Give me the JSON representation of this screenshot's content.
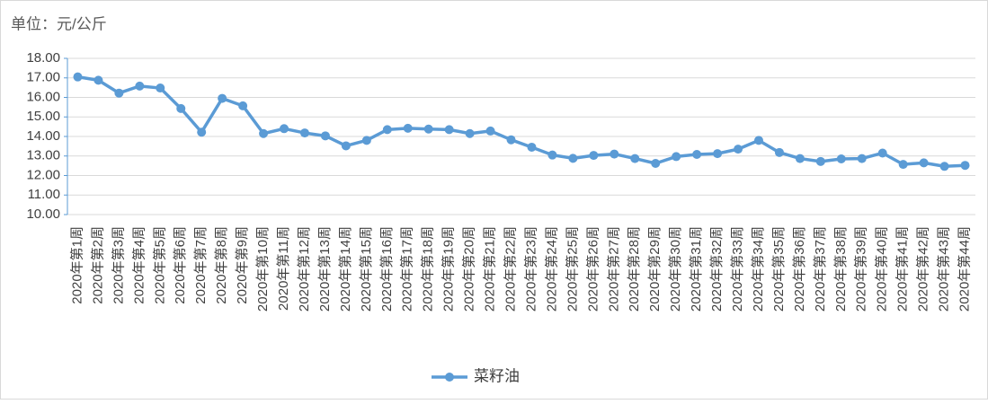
{
  "chart_data": {
    "type": "line",
    "y_label": "单位：元/公斤",
    "categories": [
      "2020年第1周",
      "2020年第2周",
      "2020年第3周",
      "2020年第4周",
      "2020年第5周",
      "2020年第6周",
      "2020年第7周",
      "2020年第8周",
      "2020年第9周",
      "2020年第10周",
      "2020年第11周",
      "2020年第12周",
      "2020年第13周",
      "2020年第14周",
      "2020年第15周",
      "2020年第16周",
      "2020年第17周",
      "2020年第18周",
      "2020年第19周",
      "2020年第20周",
      "2020年第21周",
      "2020年第22周",
      "2020年第23周",
      "2020年第24周",
      "2020年第25周",
      "2020年第26周",
      "2020年第27周",
      "2020年第28周",
      "2020年第29周",
      "2020年第30周",
      "2020年第31周",
      "2020年第32周",
      "2020年第33周",
      "2020年第34周",
      "2020年第35周",
      "2020年第36周",
      "2020年第37周",
      "2020年第38周",
      "2020年第39周",
      "2020年第40周",
      "2020年第41周",
      "2020年第42周",
      "2020年第43周",
      "2020年第44周"
    ],
    "series": [
      {
        "name": "菜籽油",
        "color": "#5b9bd5",
        "values": [
          17.05,
          16.88,
          16.22,
          16.58,
          16.48,
          15.43,
          14.22,
          15.95,
          15.57,
          14.15,
          14.4,
          14.18,
          14.03,
          13.52,
          13.8,
          14.35,
          14.42,
          14.38,
          14.35,
          14.15,
          14.28,
          13.83,
          13.45,
          13.05,
          12.88,
          13.03,
          13.1,
          12.87,
          12.62,
          12.97,
          13.08,
          13.12,
          13.35,
          13.8,
          13.18,
          12.87,
          12.72,
          12.85,
          12.87,
          13.15,
          12.57,
          12.65,
          12.47,
          12.52
        ]
      }
    ],
    "ylim": [
      10,
      18
    ],
    "yticks": [
      {
        "value": 10,
        "label": "10.00"
      },
      {
        "value": 11,
        "label": "11.00"
      },
      {
        "value": 12,
        "label": "12.00"
      },
      {
        "value": 13,
        "label": "13.00"
      },
      {
        "value": 14,
        "label": "14.00"
      },
      {
        "value": 15,
        "label": "15.00"
      },
      {
        "value": 16,
        "label": "16.00"
      },
      {
        "value": 17,
        "label": "17.00"
      },
      {
        "value": 18,
        "label": "18.00"
      }
    ],
    "grid": true,
    "legend": "bottom"
  }
}
